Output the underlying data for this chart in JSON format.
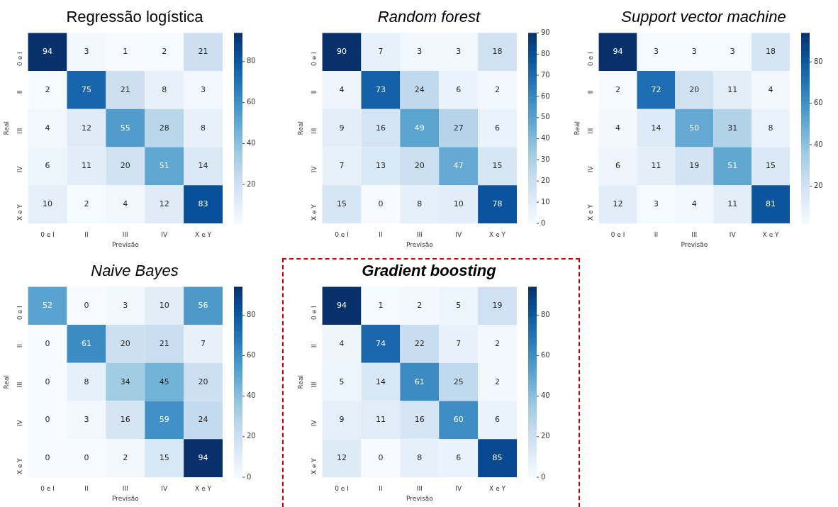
{
  "chart_data": [
    {
      "type": "heatmap",
      "title": "Regressão logística",
      "xlabel": "Previsão",
      "ylabel": "Real",
      "categories": [
        "0 e I",
        "II",
        "III",
        "IV",
        "X e Y"
      ],
      "y_categories": [
        "0 e I",
        "II",
        "III",
        "IV",
        "X e Y"
      ],
      "cells": [
        [
          94,
          3,
          1,
          2,
          21
        ],
        [
          2,
          75,
          21,
          8,
          3
        ],
        [
          4,
          12,
          55,
          28,
          8
        ],
        [
          6,
          11,
          20,
          51,
          14
        ],
        [
          10,
          2,
          4,
          12,
          83
        ]
      ],
      "clim": [
        1,
        94
      ],
      "cticks": [
        20,
        40,
        60,
        80
      ],
      "data_labels": true
    },
    {
      "type": "heatmap",
      "title": "Random forest",
      "xlabel": "Previsão",
      "ylabel": "Real",
      "categories": [
        "0 e I",
        "II",
        "III",
        "IV",
        "X e Y"
      ],
      "y_categories": [
        "0 e I",
        "II",
        "III",
        "IV",
        "X e Y"
      ],
      "cells": [
        [
          90,
          7,
          3,
          3,
          18
        ],
        [
          4,
          73,
          24,
          6,
          2
        ],
        [
          9,
          16,
          49,
          27,
          6
        ],
        [
          7,
          13,
          20,
          47,
          15
        ],
        [
          15,
          0,
          8,
          10,
          78
        ]
      ],
      "clim": [
        0,
        90
      ],
      "cticks": [
        0,
        10,
        20,
        30,
        40,
        50,
        60,
        70,
        80,
        90
      ],
      "data_labels": true
    },
    {
      "type": "heatmap",
      "title": "Support vector machine",
      "xlabel": "Previsão",
      "ylabel": "Real",
      "categories": [
        "0 e I",
        "II",
        "III",
        "IV",
        "X e Y"
      ],
      "y_categories": [
        "0 e I",
        "II",
        "III",
        "IV",
        "X e Y"
      ],
      "cells": [
        [
          94,
          3,
          3,
          3,
          18
        ],
        [
          2,
          72,
          20,
          11,
          4
        ],
        [
          4,
          14,
          50,
          31,
          8
        ],
        [
          6,
          11,
          19,
          51,
          15
        ],
        [
          12,
          3,
          4,
          11,
          81
        ]
      ],
      "clim": [
        2,
        94
      ],
      "cticks": [
        20,
        40,
        60,
        80
      ],
      "data_labels": true
    },
    {
      "type": "heatmap",
      "title": "Naive Bayes",
      "xlabel": "Previsão",
      "ylabel": "Real",
      "categories": [
        "0 e I",
        "II",
        "III",
        "IV",
        "X e Y"
      ],
      "y_categories": [
        "0 e I",
        "II",
        "III",
        "IV",
        "X e Y"
      ],
      "cells": [
        [
          52,
          0,
          3,
          10,
          56
        ],
        [
          0,
          61,
          20,
          21,
          7
        ],
        [
          0,
          8,
          34,
          45,
          20
        ],
        [
          0,
          3,
          16,
          59,
          24
        ],
        [
          0,
          0,
          2,
          15,
          94
        ]
      ],
      "clim": [
        0,
        94
      ],
      "cticks": [
        0,
        20,
        40,
        60,
        80
      ],
      "data_labels": true
    },
    {
      "type": "heatmap",
      "title": "Gradient boosting",
      "xlabel": "Previsão",
      "ylabel": "Real",
      "categories": [
        "0 e I",
        "II",
        "III",
        "IV",
        "X e Y"
      ],
      "y_categories": [
        "0 e I",
        "II",
        "III",
        "IV",
        "X e Y"
      ],
      "cells": [
        [
          94,
          1,
          2,
          5,
          19
        ],
        [
          4,
          74,
          22,
          7,
          2
        ],
        [
          5,
          14,
          61,
          25,
          2
        ],
        [
          9,
          11,
          16,
          60,
          6
        ],
        [
          12,
          0,
          8,
          6,
          85
        ]
      ],
      "clim": [
        0,
        94
      ],
      "cticks": [
        0,
        20,
        40,
        60,
        80
      ],
      "data_labels": true
    }
  ]
}
